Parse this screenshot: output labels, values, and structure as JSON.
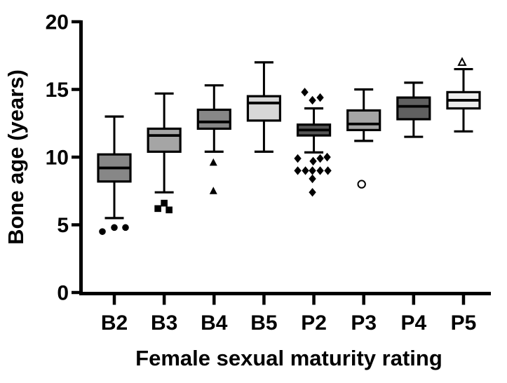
{
  "figure": {
    "background": "#ffffff",
    "axis_color": "#000000",
    "marker_color": "#000000"
  },
  "chart_data": {
    "type": "box",
    "title": "",
    "xlabel": "Female sexual maturity rating",
    "ylabel": "Bone age (years)",
    "ylim": [
      0,
      20
    ],
    "yticks": [
      0,
      5,
      10,
      15,
      20
    ],
    "ytick_labels": [
      "0",
      "5",
      "10",
      "15",
      "20"
    ],
    "categories": [
      "B2",
      "B3",
      "B4",
      "B5",
      "P2",
      "P3",
      "P4",
      "P5"
    ],
    "grid": false,
    "legend": "none",
    "boxes": [
      {
        "label": "B2",
        "fill": "#878787",
        "marker": "circle-filled",
        "whisker_low": 5.5,
        "q1": 8.2,
        "median": 9.2,
        "q3": 10.2,
        "whisker_high": 13.0,
        "outliers": [
          {
            "v": 4.5,
            "dx": -17
          },
          {
            "v": 4.8,
            "dx": 0
          },
          {
            "v": 4.8,
            "dx": 16
          }
        ]
      },
      {
        "label": "B3",
        "fill": "#a5a5a5",
        "marker": "square-filled",
        "whisker_low": 7.4,
        "q1": 10.4,
        "median": 11.6,
        "q3": 12.1,
        "whisker_high": 14.7,
        "outliers": [
          {
            "v": 6.6,
            "dx": 0
          },
          {
            "v": 6.2,
            "dx": -9
          },
          {
            "v": 6.1,
            "dx": 7
          }
        ]
      },
      {
        "label": "B4",
        "fill": "#878787",
        "marker": "triangle-filled",
        "whisker_low": 10.4,
        "q1": 12.1,
        "median": 12.6,
        "q3": 13.5,
        "whisker_high": 15.3,
        "outliers": [
          {
            "v": 9.6,
            "dx": -1
          },
          {
            "v": 7.5,
            "dx": -1
          }
        ]
      },
      {
        "label": "B5",
        "fill": "#d7d7d7",
        "marker": "none",
        "whisker_low": 10.4,
        "q1": 12.7,
        "median": 14.0,
        "q3": 14.5,
        "whisker_high": 17.0,
        "outliers": []
      },
      {
        "label": "P2",
        "fill": "#555555",
        "marker": "diamond-filled",
        "whisker_low": 10.35,
        "q1": 11.6,
        "median": 12.0,
        "q3": 12.4,
        "whisker_high": 13.6,
        "outliers": [
          {
            "v": 14.8,
            "dx": -13
          },
          {
            "v": 14.2,
            "dx": -2
          },
          {
            "v": 14.4,
            "dx": 9
          },
          {
            "v": 9.9,
            "dx": -23
          },
          {
            "v": 9.7,
            "dx": -1
          },
          {
            "v": 9.9,
            "dx": 9
          },
          {
            "v": 10.0,
            "dx": 19
          },
          {
            "v": 9.0,
            "dx": -23
          },
          {
            "v": 9.0,
            "dx": -12
          },
          {
            "v": 9.0,
            "dx": -2
          },
          {
            "v": 9.0,
            "dx": 9
          },
          {
            "v": 9.0,
            "dx": 20
          },
          {
            "v": 8.4,
            "dx": -2
          },
          {
            "v": 7.4,
            "dx": -2
          }
        ]
      },
      {
        "label": "P3",
        "fill": "#a5a5a5",
        "marker": "circle-open",
        "whisker_low": 11.2,
        "q1": 12.0,
        "median": 12.45,
        "q3": 13.45,
        "whisker_high": 15.0,
        "outliers": [
          {
            "v": 8.0,
            "dx": -3
          }
        ]
      },
      {
        "label": "P4",
        "fill": "#606060",
        "marker": "none",
        "whisker_low": 11.5,
        "q1": 12.8,
        "median": 13.75,
        "q3": 14.4,
        "whisker_high": 15.5,
        "outliers": []
      },
      {
        "label": "P5",
        "fill": "#ececec",
        "marker": "triangle-open",
        "whisker_low": 11.9,
        "q1": 13.6,
        "median": 14.2,
        "q3": 14.8,
        "whisker_high": 16.5,
        "outliers": [
          {
            "v": 17.0,
            "dx": -2
          }
        ]
      }
    ]
  }
}
